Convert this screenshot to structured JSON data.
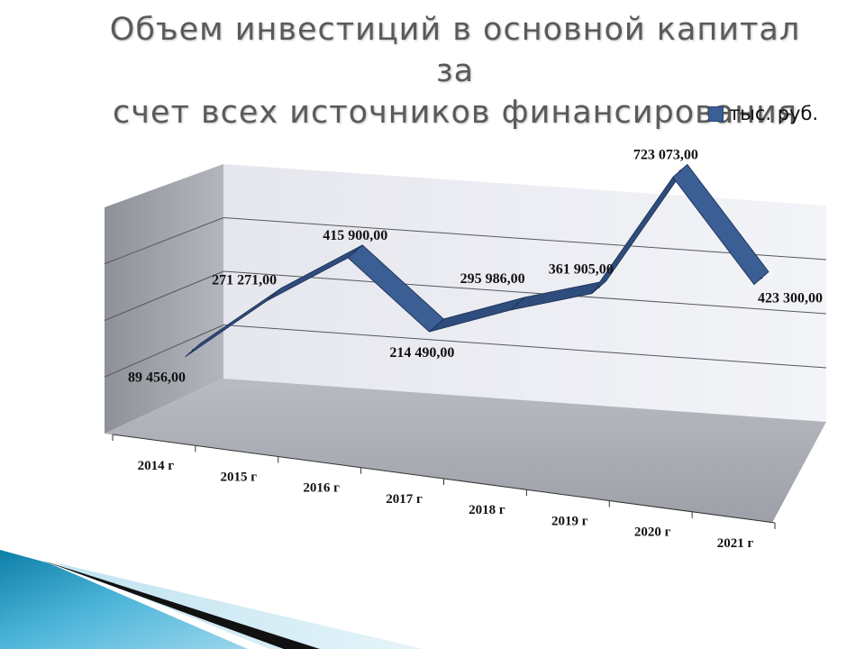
{
  "slide": {
    "title_line1": "Объем инвестиций в основной капитал за",
    "title_line2": "счет всех источников финансирования"
  },
  "chart_data": {
    "type": "line",
    "style": "3d-ribbon",
    "categories": [
      "2014 г",
      "2015 г",
      "2016 г",
      "2017 г",
      "2018 г",
      "2019 г",
      "2020 г",
      "2021 г"
    ],
    "series": [
      {
        "name": "тыс. руб.",
        "values": [
          89456.0,
          271271.0,
          415900.0,
          214490.0,
          295986.0,
          361905.0,
          723073.0,
          423300.0
        ],
        "data_labels": [
          "89 456,00",
          "271 271,00",
          "415 900,00",
          "214 490,00",
          "295 986,00",
          "361 905,00",
          "723 073,00",
          "423 300,00"
        ]
      }
    ],
    "ylim": [
      0,
      800000
    ],
    "grid": true,
    "legend": "top-right",
    "colors": {
      "series": "#3b5f95",
      "series_edge": "#22375c",
      "wall": "#e9eaf0",
      "side_wall": "#9c9ea6",
      "floor": "#a9abb3"
    }
  }
}
